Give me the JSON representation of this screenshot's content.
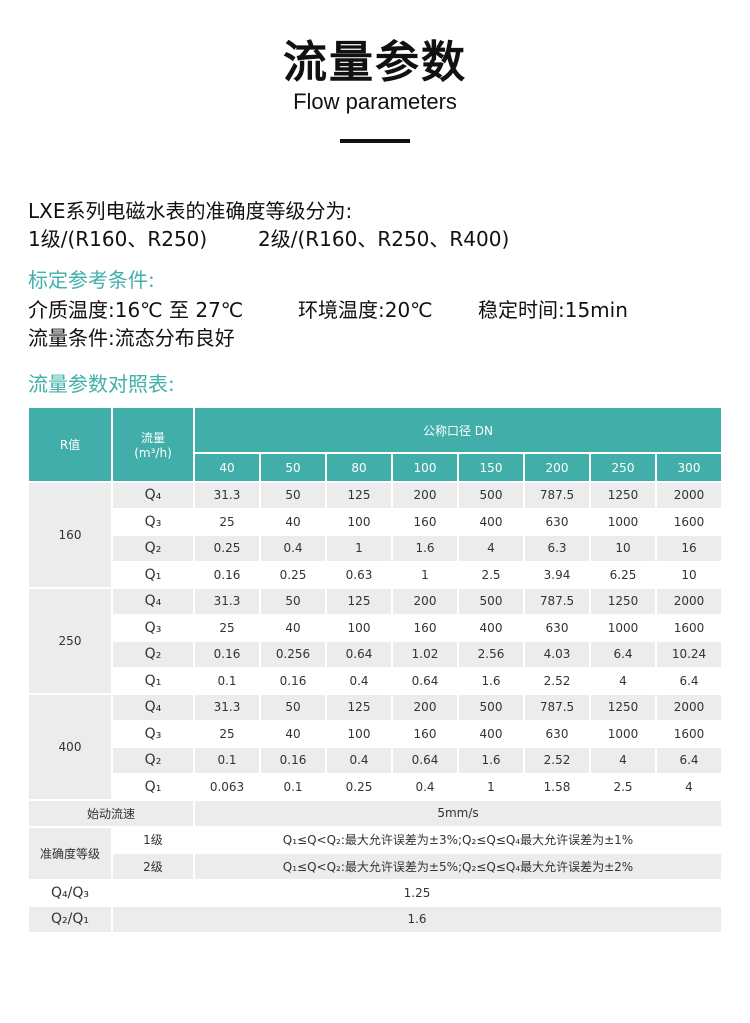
{
  "header": {
    "title": "流量参数",
    "subtitle": "Flow parameters"
  },
  "intro": {
    "line1": "LXE系列电磁水表的准确度等级分为:",
    "line2a": "1级/(R160、R250)",
    "line2b": "2级/(R160、R250、R400)"
  },
  "conditions": {
    "heading": "标定参考条件:",
    "medium_temp": "介质温度:16℃ 至 27℃",
    "ambient_temp": "环境温度:20℃",
    "stable_time": "稳定时间:15min",
    "flow_condition": "流量条件:流态分布良好"
  },
  "table_heading": "流量参数对照表:",
  "colors": {
    "accent": "#42aea9",
    "heading_text": "#3fb0aa",
    "row_gray": "#ececec"
  },
  "table": {
    "col_r": "R值",
    "col_flow": "流量",
    "col_flow_unit": "(m³/h)",
    "col_dn": "公称口径 DN",
    "dn": [
      "40",
      "50",
      "80",
      "100",
      "150",
      "200",
      "250",
      "300"
    ],
    "groups": [
      {
        "r": "160",
        "rows": [
          {
            "q": "Q₄",
            "v": [
              "31.3",
              "50",
              "125",
              "200",
              "500",
              "787.5",
              "1250",
              "2000"
            ]
          },
          {
            "q": "Q₃",
            "v": [
              "25",
              "40",
              "100",
              "160",
              "400",
              "630",
              "1000",
              "1600"
            ]
          },
          {
            "q": "Q₂",
            "v": [
              "0.25",
              "0.4",
              "1",
              "1.6",
              "4",
              "6.3",
              "10",
              "16"
            ]
          },
          {
            "q": "Q₁",
            "v": [
              "0.16",
              "0.25",
              "0.63",
              "1",
              "2.5",
              "3.94",
              "6.25",
              "10"
            ]
          }
        ]
      },
      {
        "r": "250",
        "rows": [
          {
            "q": "Q₄",
            "v": [
              "31.3",
              "50",
              "125",
              "200",
              "500",
              "787.5",
              "1250",
              "2000"
            ]
          },
          {
            "q": "Q₃",
            "v": [
              "25",
              "40",
              "100",
              "160",
              "400",
              "630",
              "1000",
              "1600"
            ]
          },
          {
            "q": "Q₂",
            "v": [
              "0.16",
              "0.256",
              "0.64",
              "1.02",
              "2.56",
              "4.03",
              "6.4",
              "10.24"
            ]
          },
          {
            "q": "Q₁",
            "v": [
              "0.1",
              "0.16",
              "0.4",
              "0.64",
              "1.6",
              "2.52",
              "4",
              "6.4"
            ]
          }
        ]
      },
      {
        "r": "400",
        "rows": [
          {
            "q": "Q₄",
            "v": [
              "31.3",
              "50",
              "125",
              "200",
              "500",
              "787.5",
              "1250",
              "2000"
            ]
          },
          {
            "q": "Q₃",
            "v": [
              "25",
              "40",
              "100",
              "160",
              "400",
              "630",
              "1000",
              "1600"
            ]
          },
          {
            "q": "Q₂",
            "v": [
              "0.1",
              "0.16",
              "0.4",
              "0.64",
              "1.6",
              "2.52",
              "4",
              "6.4"
            ]
          },
          {
            "q": "Q₁",
            "v": [
              "0.063",
              "0.1",
              "0.25",
              "0.4",
              "1",
              "1.58",
              "2.5",
              "4"
            ]
          }
        ]
      }
    ],
    "start_flow_label": "始动流速",
    "start_flow_value": "5mm/s",
    "accuracy_label": "准确度等级",
    "accuracy": [
      {
        "grade": "1级",
        "text": "Q₁≤Q<Q₂:最大允许误差为±3%;Q₂≤Q≤Q₄最大允许误差为±1%"
      },
      {
        "grade": "2级",
        "text": "Q₁≤Q<Q₂:最大允许误差为±5%;Q₂≤Q≤Q₄最大允许误差为±2%"
      }
    ],
    "ratios": [
      {
        "label": "Q₄/Q₃",
        "value": "1.25"
      },
      {
        "label": "Q₂/Q₁",
        "value": "1.6"
      }
    ]
  }
}
